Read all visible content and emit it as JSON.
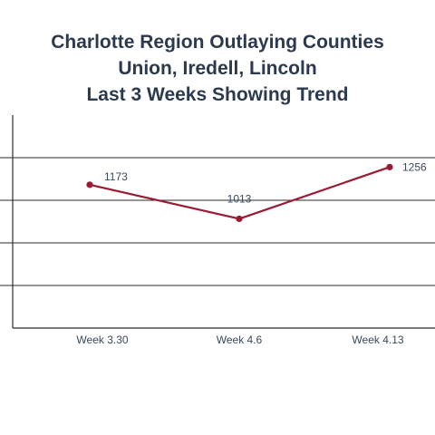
{
  "chart_data": {
    "type": "line",
    "title_lines": [
      "Charlotte Region Outlaying Counties",
      "Union, Iredell, Lincoln",
      "Last 3 Weeks Showing Trend"
    ],
    "categories": [
      "Week 3.30",
      "Week 4.6",
      "Week 4.13"
    ],
    "series": [
      {
        "values": [
          1173,
          1013,
          1256
        ],
        "labels": [
          "1173",
          "1013",
          "1256"
        ]
      }
    ],
    "ylim": [
      1500,
      500
    ],
    "grid": true,
    "line_color": "#9b1b35"
  }
}
